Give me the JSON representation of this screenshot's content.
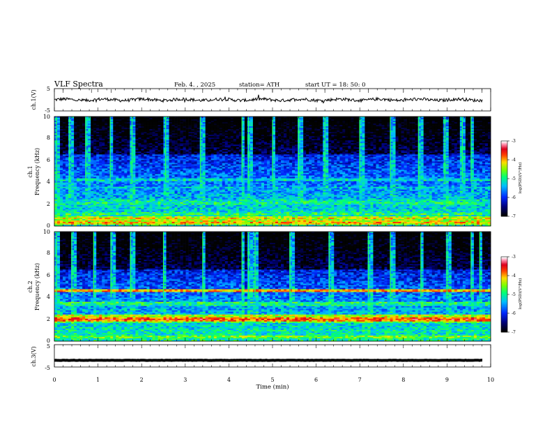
{
  "header": {
    "title": "VLF Spectra",
    "date": "Feb. 4. , 2025",
    "station": "station= ATH",
    "start": "start  UT  =   18: 50: 0"
  },
  "chart_data": [
    {
      "type": "line",
      "panel": "ch1-waveform",
      "ylabel": "ch.1(V)",
      "ylim": [
        -5,
        5
      ],
      "yticks": [
        "5",
        "-5"
      ],
      "xlim": [
        0,
        10
      ],
      "series": [
        {
          "values_description": "noisy waveform near 0 V with small excursions",
          "baseline": 0
        }
      ]
    },
    {
      "type": "heatmap",
      "panel": "ch1-spectrogram",
      "ylabel": "ch.1\nFrequency  (kHz)",
      "ylim": [
        0,
        10
      ],
      "yticks": [
        "0",
        "2",
        "4",
        "6",
        "8",
        "10"
      ],
      "xlim": [
        0,
        10
      ],
      "colorbar": {
        "label": "log(PSD)(V²/Hz)",
        "range": [
          -7,
          -3
        ],
        "ticks": [
          "-3",
          "-4",
          "-5",
          "-6",
          "-7"
        ]
      },
      "bands_khz": [
        {
          "f": 0.3,
          "level": -4.0
        },
        {
          "f": 0.7,
          "level": -4.2
        },
        {
          "f": 1.1,
          "level": -4.8
        },
        {
          "f": 2.1,
          "level": -4.9
        },
        {
          "f": 2.3,
          "level": -5.0
        },
        {
          "f": 3.5,
          "level": -5.3
        },
        {
          "f": 4.2,
          "level": -5.1
        }
      ],
      "broadband_events_min": [
        0.05,
        0.35,
        0.72,
        1.28,
        1.78,
        2.55,
        3.35,
        4.3,
        4.45,
        5.0,
        5.6,
        6.2,
        7.0,
        7.7,
        8.35,
        8.95,
        9.35,
        9.55
      ]
    },
    {
      "type": "heatmap",
      "panel": "ch2-spectrogram",
      "ylabel": "ch.2\nFrequency  (kHz)",
      "ylim": [
        0,
        10
      ],
      "yticks": [
        "0",
        "2",
        "4",
        "6",
        "8",
        "10"
      ],
      "xlim": [
        0,
        10
      ],
      "colorbar": {
        "label": "log(PSD)(V²/Hz)",
        "range": [
          -7,
          -3
        ],
        "ticks": [
          "-3",
          "-4",
          "-5",
          "-6",
          "-7"
        ]
      },
      "bands_khz": [
        {
          "f": 0.4,
          "level": -4.5
        },
        {
          "f": 1.0,
          "level": -5.0
        },
        {
          "f": 1.8,
          "level": -4.6
        },
        {
          "f": 2.0,
          "level": -3.6
        },
        {
          "f": 2.3,
          "level": -4.2
        },
        {
          "f": 3.3,
          "level": -5.0
        },
        {
          "f": 3.5,
          "level": -4.8
        },
        {
          "f": 4.6,
          "level": -3.9
        }
      ],
      "broadband_events_min": [
        0.05,
        0.4,
        0.9,
        1.3,
        1.75,
        2.5,
        3.4,
        4.3,
        4.45,
        4.6,
        5.4,
        6.3,
        7.2,
        7.7,
        8.4,
        9.0,
        9.55,
        9.75
      ]
    },
    {
      "type": "line",
      "panel": "ch3-waveform",
      "ylabel": "ch.3(V)",
      "ylim": [
        -5,
        5
      ],
      "yticks": [
        "5",
        "-5"
      ],
      "xlim": [
        0,
        10
      ],
      "xlabel": "Time  (min)",
      "xticks": [
        "0",
        "1",
        "2",
        "3",
        "4",
        "5",
        "6",
        "7",
        "8",
        "9",
        "10"
      ],
      "series": [
        {
          "values_description": "flat thick line near -2 V",
          "baseline": -2
        }
      ]
    }
  ]
}
